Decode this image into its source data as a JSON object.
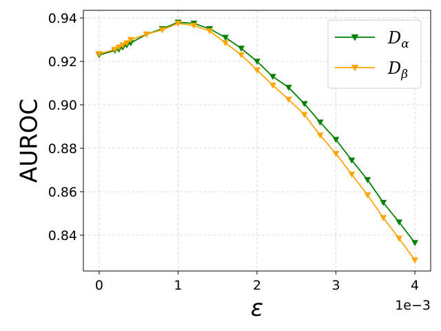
{
  "chart_data": {
    "type": "line",
    "xlabel": "ε",
    "ylabel": "AUROC",
    "x_offset_label": "1e−3",
    "xlim": [
      -0.2,
      4.2
    ],
    "ylim": [
      0.8235,
      0.9435
    ],
    "xticks": [
      0,
      1,
      2,
      3,
      4
    ],
    "xtick_labels": [
      "0",
      "1",
      "2",
      "3",
      "4"
    ],
    "yticks": [
      0.84,
      0.86,
      0.88,
      0.9,
      0.92,
      0.94
    ],
    "ytick_labels": [
      "0.84",
      "0.86",
      "0.88",
      "0.90",
      "0.92",
      "0.94"
    ],
    "grid": true,
    "legend_position": "top-right",
    "x": [
      0,
      0.2,
      0.25,
      0.3,
      0.35,
      0.4,
      0.6,
      0.8,
      1.0,
      1.2,
      1.4,
      1.6,
      1.8,
      2.0,
      2.2,
      2.4,
      2.6,
      2.8,
      3.0,
      3.2,
      3.4,
      3.6,
      3.8,
      4.0
    ],
    "series": [
      {
        "name": "D",
        "subscript": "α",
        "color": "#008000",
        "values": [
          0.923,
          0.925,
          0.9255,
          0.9265,
          0.9275,
          0.9285,
          0.9325,
          0.935,
          0.938,
          0.9375,
          0.935,
          0.931,
          0.926,
          0.92,
          0.913,
          0.908,
          0.9005,
          0.892,
          0.884,
          0.8745,
          0.8655,
          0.855,
          0.846,
          0.8365
        ]
      },
      {
        "name": "D",
        "subscript": "β",
        "color": "#ffa500",
        "values": [
          0.9235,
          0.9255,
          0.9265,
          0.9275,
          0.9285,
          0.93,
          0.9325,
          0.9345,
          0.9375,
          0.9365,
          0.934,
          0.9285,
          0.923,
          0.916,
          0.909,
          0.9025,
          0.8955,
          0.886,
          0.8775,
          0.868,
          0.8585,
          0.848,
          0.8385,
          0.8285
        ]
      }
    ]
  }
}
